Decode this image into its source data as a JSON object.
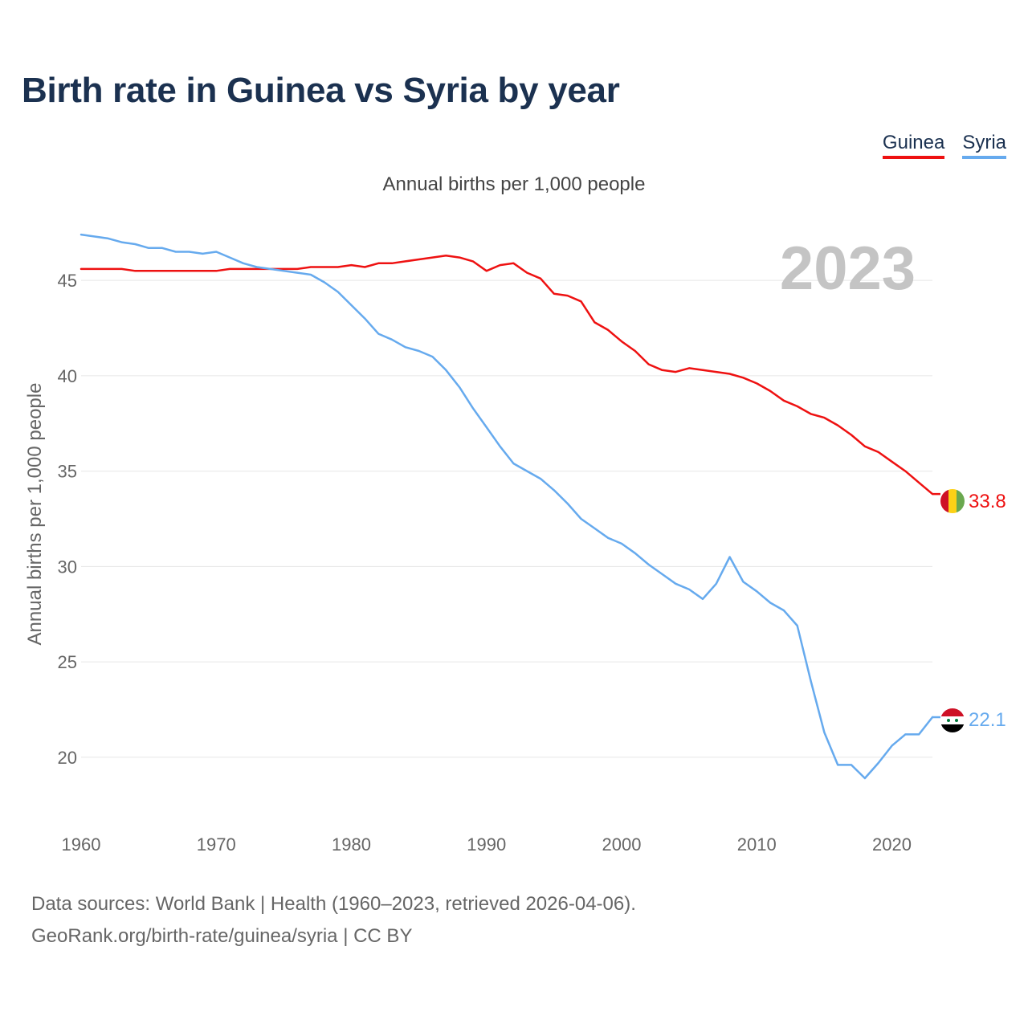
{
  "title": "Birth rate in Guinea vs Syria by year",
  "subtitle": "Annual births per 1,000 people",
  "legend": [
    {
      "name": "Guinea",
      "color": "#ee1111"
    },
    {
      "name": "Syria",
      "color": "#66aaee"
    }
  ],
  "sources": {
    "line1": "Data sources: World Bank | Health (1960–2023, retrieved 2026-04-06).",
    "line2": "GeoRank.org/birth-rate/guinea/syria | CC BY"
  },
  "chart_data": {
    "type": "line",
    "title": "Birth rate in Guinea vs Syria by year",
    "subtitle": "Annual births per 1,000 people",
    "xlabel": "",
    "ylabel": "Annual births per 1,000 people",
    "year_label": "2023",
    "xlim": [
      1960,
      2023
    ],
    "ylim": [
      16.5,
      47.7
    ],
    "x_ticks": [
      1960,
      1970,
      1980,
      1990,
      2000,
      2010,
      2020
    ],
    "y_ticks": [
      20,
      25,
      30,
      35,
      40,
      45
    ],
    "grid": true,
    "x": [
      1960,
      1961,
      1962,
      1963,
      1964,
      1965,
      1966,
      1967,
      1968,
      1969,
      1970,
      1971,
      1972,
      1973,
      1974,
      1975,
      1976,
      1977,
      1978,
      1979,
      1980,
      1981,
      1982,
      1983,
      1984,
      1985,
      1986,
      1987,
      1988,
      1989,
      1990,
      1991,
      1992,
      1993,
      1994,
      1995,
      1996,
      1997,
      1998,
      1999,
      2000,
      2001,
      2002,
      2003,
      2004,
      2005,
      2006,
      2007,
      2008,
      2009,
      2010,
      2011,
      2012,
      2013,
      2014,
      2015,
      2016,
      2017,
      2018,
      2019,
      2020,
      2021,
      2022,
      2023
    ],
    "series": [
      {
        "name": "Guinea",
        "color": "#ee1111",
        "end_label": "33.8",
        "values": [
          45.6,
          45.6,
          45.6,
          45.6,
          45.5,
          45.5,
          45.5,
          45.5,
          45.5,
          45.5,
          45.5,
          45.6,
          45.6,
          45.6,
          45.6,
          45.6,
          45.6,
          45.7,
          45.7,
          45.7,
          45.8,
          45.7,
          45.9,
          45.9,
          46.0,
          46.1,
          46.2,
          46.3,
          46.2,
          46.0,
          45.5,
          45.8,
          45.9,
          45.4,
          45.1,
          44.3,
          44.2,
          43.9,
          42.8,
          42.4,
          41.8,
          41.3,
          40.6,
          40.3,
          40.2,
          40.4,
          40.3,
          40.2,
          40.1,
          39.9,
          39.6,
          39.2,
          38.7,
          38.4,
          38.0,
          37.8,
          37.4,
          36.9,
          36.3,
          36.0,
          35.5,
          35.0,
          34.4,
          33.8
        ]
      },
      {
        "name": "Syria",
        "color": "#66aaee",
        "end_label": "22.1",
        "values": [
          47.4,
          47.3,
          47.2,
          47.0,
          46.9,
          46.7,
          46.7,
          46.5,
          46.5,
          46.4,
          46.5,
          46.2,
          45.9,
          45.7,
          45.6,
          45.5,
          45.4,
          45.3,
          44.9,
          44.4,
          43.7,
          43.0,
          42.2,
          41.9,
          41.5,
          41.3,
          41.0,
          40.3,
          39.4,
          38.3,
          37.3,
          36.3,
          35.4,
          35.0,
          34.6,
          34.0,
          33.3,
          32.5,
          32.0,
          31.5,
          31.2,
          30.7,
          30.1,
          29.6,
          29.1,
          28.8,
          28.3,
          29.1,
          30.5,
          29.2,
          28.7,
          28.1,
          27.7,
          26.9,
          24.0,
          21.3,
          19.6,
          19.6,
          18.9,
          19.7,
          20.6,
          21.2,
          21.2,
          22.1
        ]
      }
    ]
  }
}
